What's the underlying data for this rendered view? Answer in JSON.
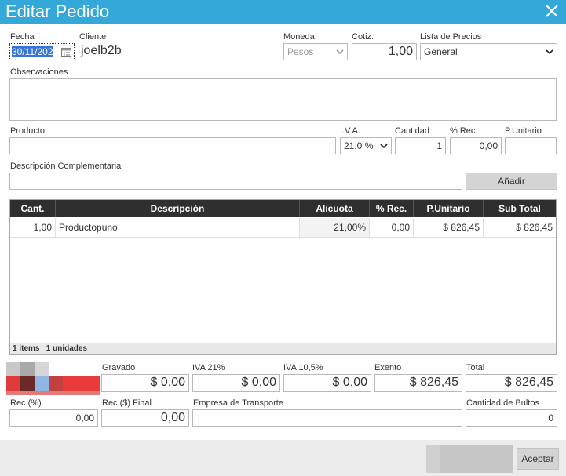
{
  "window": {
    "title": "Editar Pedido"
  },
  "header": {
    "fecha_label": "Fecha",
    "fecha_value": "30/11/202",
    "cliente_label": "Cliente",
    "cliente_value": "joelb2b",
    "moneda_label": "Moneda",
    "moneda_value": "Pesos",
    "cotiz_label": "Cotiz.",
    "cotiz_value": "1,00",
    "lista_label": "Lista de Precios",
    "lista_value": "General"
  },
  "observaciones": {
    "label": "Observaciones",
    "value": ""
  },
  "producto_row": {
    "producto_label": "Producto",
    "producto_value": "",
    "iva_label": "I.V.A.",
    "iva_value": "21,0 %",
    "cantidad_label": "Cantidad",
    "cantidad_value": "1",
    "rec_label": "% Rec.",
    "rec_value": "0,00",
    "punit_label": "P.Unitario",
    "punit_value": ""
  },
  "desc_comp": {
    "label": "Descripción Complementaria",
    "value": "",
    "add_button": "Añadir"
  },
  "grid": {
    "columns": [
      "Cant.",
      "Descripción",
      "Alicuota",
      "% Rec.",
      "P.Unitario",
      "Sub Total"
    ],
    "rows": [
      {
        "cant": "1,00",
        "descripcion": "Productopuno",
        "alicuota": "21,00%",
        "rec": "0,00",
        "punitario": "$ 826,45",
        "subtotal": "$ 826,45"
      }
    ],
    "summary": "1 items   1 unidades"
  },
  "totals": {
    "gravado_label": "Gravado",
    "gravado_value": "$ 0,00",
    "iva21_label": "IVA 21%",
    "iva21_value": "$ 0,00",
    "iva105_label": "IVA 10,5%",
    "iva105_value": "$ 0,00",
    "exento_label": "Exento",
    "exento_value": "$ 826,45",
    "total_label": "Total",
    "total_value": "$ 826,45"
  },
  "extras": {
    "rec_pct_label": "Rec.(%)",
    "rec_pct_value": "0,00",
    "rec_final_label": "Rec.($) Final",
    "rec_final_value": "0,00",
    "transporte_label": "Empresa de Transporte",
    "transporte_value": "",
    "bultos_label": "Cantidad de Bultos",
    "bultos_value": "0"
  },
  "footer": {
    "accept_button": "Aceptar"
  },
  "colors": {
    "titlebar": "#34a9d9",
    "grid_header": "#2f2f2f",
    "selection": "#3875d7"
  }
}
